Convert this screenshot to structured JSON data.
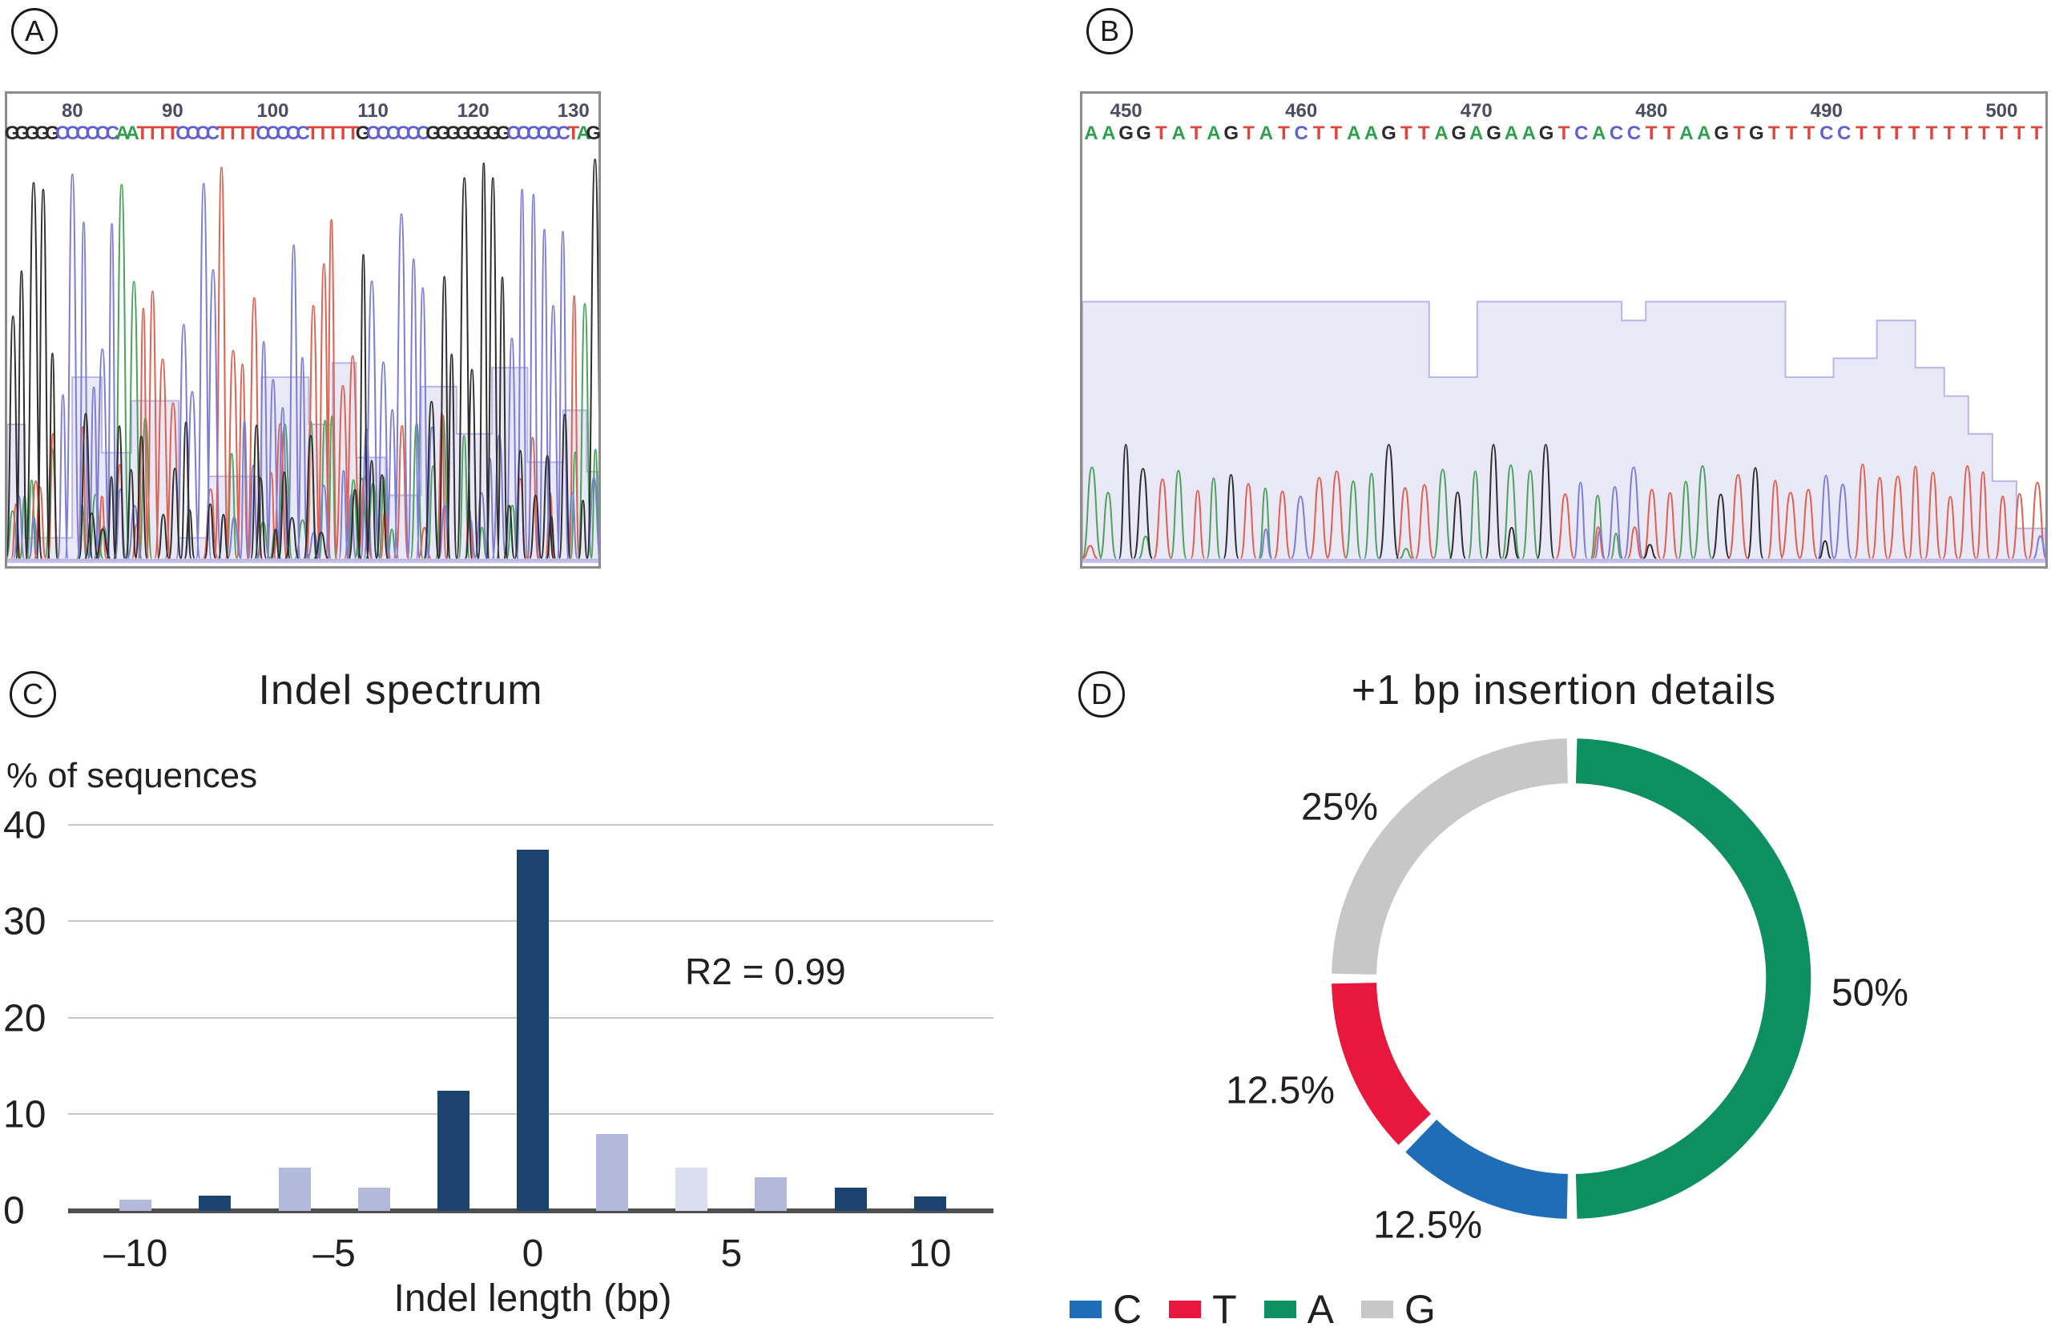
{
  "figure": {
    "panel_a": {
      "label": "A",
      "ruler": {
        "start_base": 74,
        "ticks": [
          80,
          90,
          100,
          110,
          120,
          130
        ]
      },
      "sequence": "GGGGGCCCCCCAATTTTCCCCTTTTCCCCCTTTTTGCCCCCCGGGGGGGGCCCCCCTAG",
      "quality_steps": [
        [
          0,
          70
        ],
        [
          3,
          94
        ],
        [
          11,
          60
        ],
        [
          16,
          76
        ],
        [
          21,
          65
        ],
        [
          29,
          94
        ],
        [
          34,
          81
        ],
        [
          43,
          60
        ],
        [
          51,
          70
        ],
        [
          55,
          57
        ],
        [
          59,
          77
        ],
        [
          64,
          85
        ],
        [
          70,
          62
        ],
        [
          76,
          72
        ],
        [
          82,
          58
        ],
        [
          88,
          78
        ],
        [
          94,
          67
        ],
        [
          98,
          80
        ]
      ],
      "trace_style": "noisy",
      "seed": 20
    },
    "panel_b": {
      "label": "B",
      "ruler": {
        "start_base": 448,
        "ticks": [
          450,
          460,
          470,
          480,
          490,
          500
        ]
      },
      "sequence": "AAGGTATAGTATCTTAAGTTAGAGAAGTCACCTTAAGTGTTTCCTTTTTTTTTTT",
      "quality_steps": [
        [
          0,
          44
        ],
        [
          36,
          60
        ],
        [
          41,
          44
        ],
        [
          56,
          48
        ],
        [
          58.5,
          44
        ],
        [
          73,
          60
        ],
        [
          78,
          56
        ],
        [
          82.5,
          48
        ],
        [
          86.5,
          58
        ],
        [
          89.5,
          64
        ],
        [
          92,
          72
        ],
        [
          94.5,
          82
        ],
        [
          97,
          92
        ]
      ],
      "trace_style": "clean",
      "seed": 73
    },
    "base_colors": {
      "A": "#2ea14c",
      "C": "#6161d0",
      "G": "#2b2b2b",
      "T": "#e0453c"
    },
    "trace_colors": {
      "A": "#4da25f",
      "C": "#7d7dd8",
      "G": "#2f2f2f",
      "T": "#e2604f"
    },
    "quality_fill": "#e9e8f7",
    "quality_stroke": "#bab7e6",
    "panel_c": {
      "label": "C",
      "title": "Indel spectrum",
      "ylabel": "% of sequences",
      "xlabel": "Indel length (bp)",
      "annotation": "R2 = 0.99"
    },
    "panel_d": {
      "label": "D",
      "title": "+1 bp insertion details",
      "callouts": {
        "a": "50%",
        "g": "25%",
        "t": "12.5%",
        "c": "12.5%"
      },
      "legend": [
        {
          "letter": "C",
          "color": "#1f6db6"
        },
        {
          "letter": "T",
          "color": "#e8173d"
        },
        {
          "letter": "A",
          "color": "#0e8f62"
        },
        {
          "letter": "G",
          "color": "#c7c7c7"
        }
      ]
    }
  },
  "chart_data": [
    {
      "type": "bar",
      "title": "Indel spectrum",
      "xlabel": "Indel length (bp)",
      "ylabel": "% of sequences",
      "annotation": "R2 = 0.99",
      "ylim": [
        0,
        40
      ],
      "yticks": [
        0,
        10,
        20,
        30,
        40
      ],
      "xlim": [
        -11.6,
        11.6
      ],
      "xticks": [
        {
          "value": -10,
          "label": "–10"
        },
        {
          "value": -5,
          "label": "–5"
        },
        {
          "value": 0,
          "label": "0"
        },
        {
          "value": 5,
          "label": "5"
        },
        {
          "value": 10,
          "label": "10"
        }
      ],
      "grid": true,
      "bars": [
        {
          "x": -10,
          "value": 1.2,
          "shade": "medium"
        },
        {
          "x": -8,
          "value": 1.6,
          "shade": "dark"
        },
        {
          "x": -6,
          "value": 4.5,
          "shade": "medium"
        },
        {
          "x": -4,
          "value": 2.4,
          "shade": "medium"
        },
        {
          "x": -2,
          "value": 12.5,
          "shade": "dark"
        },
        {
          "x": 0,
          "value": 37.5,
          "shade": "dark"
        },
        {
          "x": 2,
          "value": 8.0,
          "shade": "medium"
        },
        {
          "x": 4,
          "value": 4.5,
          "shade": "light"
        },
        {
          "x": 6,
          "value": 3.5,
          "shade": "medium"
        },
        {
          "x": 8,
          "value": 2.4,
          "shade": "dark"
        },
        {
          "x": 10,
          "value": 1.5,
          "shade": "dark"
        }
      ],
      "bar_colors": {
        "dark": "#1c4270",
        "medium": "#b2b9db",
        "light": "#dbdeee"
      }
    },
    {
      "type": "pie",
      "donut": true,
      "title": "+1 bp insertion details",
      "start_angle_deg": 0,
      "clockwise": true,
      "legend_position": "bottom-left",
      "slices": [
        {
          "label": "A",
          "value": 50,
          "text": "50%",
          "color": "#0e8f62"
        },
        {
          "label": "C",
          "value": 12.5,
          "text": "12.5%",
          "color": "#1f6db6"
        },
        {
          "label": "T",
          "value": 12.5,
          "text": "12.5%",
          "color": "#e8173d"
        },
        {
          "label": "G",
          "value": 25,
          "text": "25%",
          "color": "#c7c7c7"
        }
      ]
    }
  ]
}
